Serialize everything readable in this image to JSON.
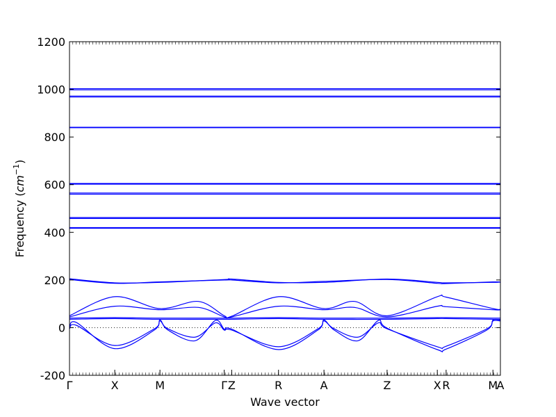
{
  "chart_data": {
    "type": "line",
    "title": "",
    "xlabel": "Wave vector",
    "ylabel": "Frequency (cm⁻¹)",
    "ylabel_main": "Frequency (",
    "ylabel_unit": "cm",
    "ylabel_exp": "−1",
    "ylabel_close": ")",
    "ylim": [
      -200,
      1200
    ],
    "yticks": [
      -200,
      0,
      200,
      400,
      600,
      800,
      1000,
      1200
    ],
    "xlim": [
      0,
      6.35
    ],
    "high_symmetry_points": [
      {
        "label": "Γ",
        "x": 0.0
      },
      {
        "label": "X",
        "x": 0.667
      },
      {
        "label": "M",
        "x": 1.333
      },
      {
        "label": "Γ",
        "x": 2.28
      },
      {
        "label": "Z",
        "x": 2.39
      },
      {
        "label": "R",
        "x": 3.08
      },
      {
        "label": "A",
        "x": 3.75
      },
      {
        "label": "Z",
        "x": 4.68
      },
      {
        "label": "X",
        "x": 5.42
      },
      {
        "label": "R",
        "x": 5.55
      },
      {
        "label": "M",
        "x": 6.24
      },
      {
        "label": "A",
        "x": 6.35
      }
    ],
    "zero_line": {
      "y": 0,
      "style": "dotted"
    },
    "line_color": "#0000ff",
    "flat_bands": [
      1003,
      998,
      972,
      968,
      841,
      839,
      605,
      602,
      565,
      560,
      462,
      458,
      420,
      417
    ],
    "bands": [
      {
        "x": [
          0,
          0.667,
          1.333,
          2.28,
          2.39,
          3.08,
          3.75,
          4.68,
          5.42,
          5.55,
          6.24,
          6.35
        ],
        "y": [
          205,
          188,
          190,
          202,
          204,
          190,
          190,
          204,
          190,
          188,
          190,
          192
        ]
      },
      {
        "x": [
          0,
          0.667,
          1.333,
          2.28,
          2.39,
          3.08,
          3.75,
          4.68,
          5.42,
          5.55,
          6.24,
          6.35
        ],
        "y": [
          202,
          186,
          192,
          200,
          200,
          188,
          194,
          202,
          186,
          185,
          192,
          190
        ]
      },
      {
        "x": [
          0,
          0.667,
          1.333,
          1.9,
          2.28,
          2.39,
          3.08,
          3.75,
          4.2,
          4.68,
          5.42,
          5.55,
          6.24,
          6.35
        ],
        "y": [
          50,
          130,
          80,
          110,
          50,
          48,
          130,
          80,
          110,
          50,
          130,
          128,
          80,
          78
        ]
      },
      {
        "x": [
          0,
          0.667,
          1.333,
          1.9,
          2.28,
          2.39,
          3.08,
          3.75,
          4.2,
          4.68,
          5.42,
          5.55,
          6.24,
          6.35
        ],
        "y": [
          45,
          90,
          75,
          85,
          45,
          45,
          90,
          75,
          85,
          45,
          90,
          88,
          75,
          75
        ]
      },
      {
        "x": [
          0,
          0.667,
          1.333,
          2.28,
          2.39,
          3.08,
          3.75,
          4.68,
          5.42,
          5.55,
          6.24,
          6.35
        ],
        "y": [
          40,
          42,
          40,
          40,
          40,
          42,
          40,
          40,
          42,
          42,
          40,
          40
        ]
      },
      {
        "x": [
          0,
          0.667,
          1.333,
          2.28,
          2.39,
          3.08,
          3.75,
          4.68,
          5.42,
          5.55,
          6.24,
          6.35
        ],
        "y": [
          35,
          38,
          35,
          35,
          35,
          38,
          35,
          35,
          38,
          38,
          35,
          35
        ]
      },
      {
        "x": [
          0,
          0.1,
          0.667,
          1.25,
          1.333,
          1.45,
          1.85,
          2.15,
          2.28,
          2.39,
          3.08,
          3.66,
          3.75,
          3.9,
          4.25,
          4.55,
          4.68,
          5.42,
          5.55,
          6.15,
          6.24,
          6.35
        ],
        "y": [
          -5,
          10,
          -75,
          -5,
          28,
          -5,
          -40,
          20,
          -10,
          -10,
          -80,
          -5,
          28,
          -5,
          -40,
          20,
          -5,
          -80,
          -78,
          -5,
          28,
          28
        ]
      },
      {
        "x": [
          0,
          0.1,
          0.667,
          1.25,
          1.333,
          1.45,
          1.85,
          2.15,
          2.28,
          2.39,
          3.08,
          3.66,
          3.75,
          3.9,
          4.25,
          4.55,
          4.68,
          5.42,
          5.55,
          6.15,
          6.24,
          6.35
        ],
        "y": [
          -2,
          22,
          -88,
          -10,
          32,
          -10,
          -55,
          30,
          -6,
          -6,
          -92,
          -10,
          32,
          -10,
          -55,
          30,
          -2,
          -92,
          -90,
          -10,
          32,
          32
        ]
      }
    ]
  }
}
